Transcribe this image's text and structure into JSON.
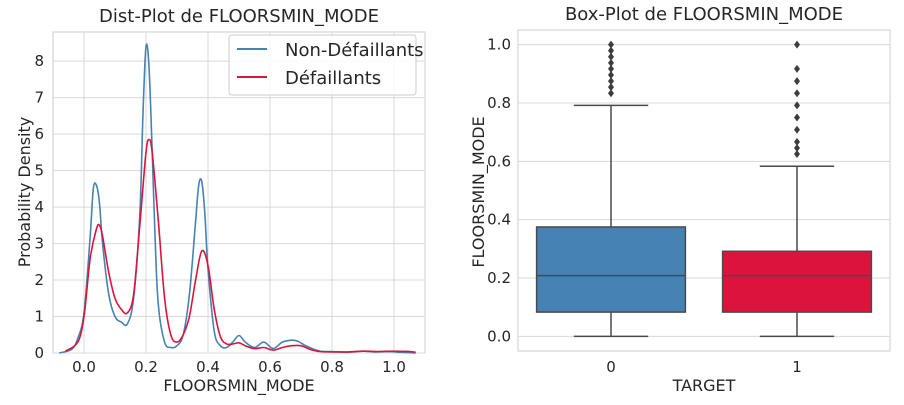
{
  "chart_data": [
    {
      "type": "line",
      "title": "Dist-Plot de FLOORSMIN_MODE",
      "xlabel": "FLOORSMIN_MODE",
      "ylabel": "Probability Density",
      "xlim": [
        -0.1,
        1.1
      ],
      "ylim": [
        0,
        8.8
      ],
      "xticks": [
        "0.0",
        "0.2",
        "0.4",
        "0.6",
        "0.8",
        "1.0"
      ],
      "yticks": [
        "0",
        "1",
        "2",
        "3",
        "4",
        "5",
        "6",
        "7",
        "8"
      ],
      "grid": true,
      "legend_position": "top-right",
      "series": [
        {
          "name": "Non-Défaillants",
          "color": "#4682b4",
          "x": [
            -0.08,
            -0.04,
            -0.02,
            0.0,
            0.02,
            0.03,
            0.04,
            0.05,
            0.06,
            0.08,
            0.1,
            0.12,
            0.14,
            0.16,
            0.18,
            0.19,
            0.2,
            0.21,
            0.22,
            0.23,
            0.24,
            0.26,
            0.28,
            0.3,
            0.32,
            0.34,
            0.36,
            0.37,
            0.38,
            0.39,
            0.4,
            0.42,
            0.44,
            0.46,
            0.48,
            0.5,
            0.52,
            0.55,
            0.58,
            0.61,
            0.64,
            0.67,
            0.69,
            0.72,
            0.76,
            0.8,
            0.85,
            0.9,
            0.94,
            0.98,
            1.02,
            1.07
          ],
          "y": [
            0.0,
            0.1,
            0.4,
            1.1,
            3.2,
            4.5,
            4.6,
            4.1,
            3.0,
            1.6,
            1.0,
            0.85,
            0.8,
            1.5,
            3.8,
            6.5,
            8.4,
            7.8,
            5.5,
            3.0,
            1.3,
            0.3,
            0.15,
            0.2,
            0.5,
            1.6,
            3.6,
            4.6,
            4.7,
            3.8,
            2.3,
            0.6,
            0.2,
            0.15,
            0.3,
            0.48,
            0.3,
            0.15,
            0.3,
            0.12,
            0.3,
            0.35,
            0.32,
            0.18,
            0.05,
            0.04,
            0.02,
            0.05,
            0.03,
            0.04,
            0.02,
            0.0
          ]
        },
        {
          "name": "Défaillants",
          "color": "#dc143c",
          "x": [
            -0.06,
            -0.02,
            0.0,
            0.02,
            0.04,
            0.05,
            0.06,
            0.08,
            0.1,
            0.12,
            0.14,
            0.16,
            0.18,
            0.2,
            0.21,
            0.22,
            0.24,
            0.26,
            0.28,
            0.3,
            0.32,
            0.34,
            0.36,
            0.38,
            0.4,
            0.42,
            0.44,
            0.46,
            0.48,
            0.5,
            0.52,
            0.55,
            0.58,
            0.61,
            0.64,
            0.67,
            0.7,
            0.73,
            0.76,
            0.8,
            0.85,
            0.9,
            0.95,
            1.0,
            1.05,
            1.07
          ],
          "y": [
            0.05,
            0.3,
            1.0,
            2.6,
            3.4,
            3.5,
            3.2,
            2.2,
            1.5,
            1.2,
            1.1,
            1.6,
            3.5,
            5.5,
            5.85,
            5.5,
            3.6,
            1.5,
            0.5,
            0.3,
            0.5,
            1.0,
            2.0,
            2.8,
            2.4,
            1.2,
            0.45,
            0.25,
            0.25,
            0.28,
            0.2,
            0.12,
            0.15,
            0.08,
            0.15,
            0.2,
            0.2,
            0.1,
            0.04,
            0.03,
            0.03,
            0.05,
            0.04,
            0.05,
            0.04,
            0.02
          ]
        }
      ]
    },
    {
      "type": "box",
      "title": "Box-Plot de FLOORSMIN_MODE",
      "xlabel": "TARGET",
      "ylabel": "FLOORSMIN_MODE",
      "ylim": [
        -0.05,
        1.05
      ],
      "yticks": [
        "0.0",
        "0.2",
        "0.4",
        "0.6",
        "0.8",
        "1.0"
      ],
      "grid": true,
      "categories": [
        "0",
        "1"
      ],
      "boxes": [
        {
          "category": "0",
          "color": "#4682b4",
          "whisker_low": 0.0,
          "q1": 0.0833,
          "median": 0.2083,
          "q3": 0.375,
          "whisker_high": 0.7917,
          "outliers": [
            0.8333,
            0.8542,
            0.875,
            0.8958,
            0.9167,
            0.9375,
            0.9583,
            0.9792,
            1.0
          ]
        },
        {
          "category": "1",
          "color": "#dc143c",
          "whisker_low": 0.0,
          "q1": 0.0833,
          "median": 0.2083,
          "q3": 0.2917,
          "whisker_high": 0.5833,
          "outliers": [
            0.625,
            0.6458,
            0.6667,
            0.7083,
            0.75,
            0.7917,
            0.8333,
            0.875,
            0.9167,
            1.0
          ]
        }
      ]
    }
  ]
}
